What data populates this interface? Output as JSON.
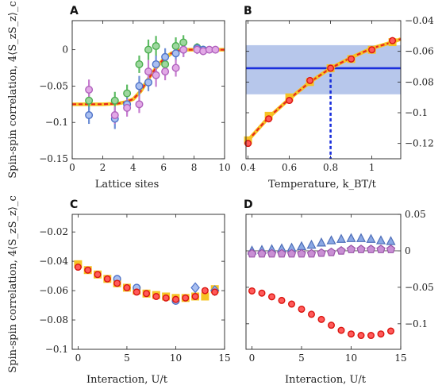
{
  "chart_data": [
    {
      "panel": "A",
      "type": "scatter",
      "xlabel": "Lattice sites",
      "ylabel": "Spin-spin correlation, 4⟨S_zS_z⟩_c",
      "xlim": [
        0,
        10
      ],
      "ylim": [
        -0.15,
        0.04
      ],
      "xticks": [
        0,
        2,
        4,
        6,
        8,
        10
      ],
      "yticks": [
        -0.15,
        -0.1,
        -0.05,
        0
      ],
      "ytick_labels": [
        "−0.15",
        "−0.1",
        "−0.05",
        "0"
      ],
      "xtick_labels": [
        "0",
        "2",
        "4",
        "6",
        "8",
        "10"
      ],
      "colors": {
        "green": "#5dbb63",
        "blue": "#6e8fd6",
        "purple": "#c67ccf",
        "theory_yellow": "#f6c324",
        "theory_red": "#e8251e"
      },
      "theory_x": [
        0,
        1,
        2,
        3,
        3.5,
        4,
        4.5,
        5,
        5.5,
        6,
        6.5,
        7,
        7.5,
        8,
        9,
        10
      ],
      "theory_y": [
        -0.075,
        -0.075,
        -0.075,
        -0.074,
        -0.072,
        -0.068,
        -0.057,
        -0.04,
        -0.025,
        -0.013,
        -0.005,
        -0.001,
        0.0,
        0.0,
        0.0,
        0.0
      ],
      "series": [
        {
          "color": "green",
          "x": [
            1.1,
            2.8,
            3.6,
            4.4,
            5.0,
            5.5,
            6.1,
            6.8,
            7.3,
            8.2,
            8.6
          ],
          "y": [
            -0.07,
            -0.07,
            -0.06,
            -0.02,
            0.0,
            0.005,
            -0.02,
            0.005,
            0.01,
            0.003,
            0.0
          ],
          "err": [
            0.012,
            0.012,
            0.012,
            0.012,
            0.014,
            0.014,
            0.012,
            0.012,
            0.01,
            0.006,
            0.005
          ]
        },
        {
          "color": "blue",
          "x": [
            1.1,
            2.8,
            3.6,
            4.4,
            5.0,
            5.5,
            6.1,
            6.8,
            7.3,
            8.2,
            8.6
          ],
          "y": [
            -0.09,
            -0.095,
            -0.075,
            -0.05,
            -0.045,
            -0.02,
            -0.01,
            -0.005,
            0.0,
            0.002,
            0.0
          ],
          "err": [
            0.012,
            0.014,
            0.012,
            0.014,
            0.012,
            0.012,
            0.012,
            0.01,
            0.01,
            0.006,
            0.005
          ]
        },
        {
          "color": "purple",
          "x": [
            1.1,
            2.8,
            3.6,
            4.4,
            5.0,
            5.5,
            6.1,
            6.8,
            7.3,
            8.2,
            8.6,
            9.0,
            9.4
          ],
          "y": [
            -0.055,
            -0.09,
            -0.08,
            -0.075,
            -0.03,
            -0.035,
            -0.03,
            -0.025,
            0.0,
            0.0,
            -0.002,
            0.0,
            0.0
          ],
          "err": [
            0.014,
            0.012,
            0.012,
            0.012,
            0.016,
            0.016,
            0.012,
            0.012,
            0.01,
            0.006,
            0.005,
            0.004,
            0.004
          ]
        }
      ]
    },
    {
      "panel": "B",
      "type": "line",
      "xlabel": "Temperature, k_BT/t",
      "ylabel": "",
      "xlim": [
        0.39,
        1.14
      ],
      "ylim": [
        -0.13,
        -0.04
      ],
      "xticks": [
        0.4,
        0.6,
        0.8,
        1.0
      ],
      "xtick_labels": [
        "0.4",
        "0.6",
        "0.8",
        "1"
      ],
      "yticks": [
        -0.12,
        -0.1,
        -0.08,
        -0.06,
        -0.04
      ],
      "ytick_labels": [
        "−0.12",
        "−0.1",
        "−0.08",
        "−0.06",
        "−0.04"
      ],
      "band": {
        "y": [
          -0.088,
          -0.056
        ],
        "color": "#b3c4ea"
      },
      "hline": {
        "y": -0.071,
        "color": "#1a2fdc"
      },
      "vline": {
        "x": 0.8,
        "color": "#1a2fdc"
      },
      "theory_x": [
        0.4,
        0.5,
        0.6,
        0.7,
        0.8,
        0.9,
        1.0,
        1.1,
        1.14
      ],
      "theory_y": [
        -0.118,
        -0.103,
        -0.091,
        -0.08,
        -0.071,
        -0.064,
        -0.058,
        -0.054,
        -0.052
      ],
      "yellow_x": [
        0.4,
        0.5,
        0.6,
        0.7,
        0.8,
        0.9,
        1.0,
        1.1
      ],
      "yellow_y": [
        -0.118,
        -0.102,
        -0.09,
        -0.08,
        -0.071,
        -0.065,
        -0.059,
        -0.054
      ],
      "red_x": [
        0.4,
        0.5,
        0.6,
        0.7,
        0.8,
        0.9,
        1.0,
        1.1
      ],
      "red_y": [
        -0.12,
        -0.104,
        -0.092,
        -0.079,
        -0.071,
        -0.065,
        -0.059,
        -0.053
      ]
    },
    {
      "panel": "C",
      "type": "scatter",
      "xlabel": "Interaction, U/t",
      "ylabel": "Spin-spin correlation, 4⟨S_zS_z⟩_c",
      "xlim": [
        -0.6,
        15
      ],
      "ylim": [
        -0.1,
        -0.008
      ],
      "xticks": [
        0,
        5,
        10,
        15
      ],
      "xtick_labels": [
        "0",
        "5",
        "10",
        "15"
      ],
      "yticks": [
        -0.1,
        -0.08,
        -0.06,
        -0.04,
        -0.02
      ],
      "ytick_labels": [
        "−0.1",
        "−0.08",
        "−0.06",
        "−0.04",
        "−0.02"
      ],
      "yellow_x": [
        0,
        1,
        2,
        3,
        4,
        5,
        6,
        7,
        8,
        9,
        10,
        11,
        12,
        13,
        14
      ],
      "yellow_y": [
        -0.042,
        -0.046,
        -0.049,
        -0.052,
        -0.055,
        -0.058,
        -0.06,
        -0.062,
        -0.063,
        -0.064,
        -0.065,
        -0.065,
        -0.064,
        -0.064,
        -0.059
      ],
      "red_x": [
        0,
        1,
        2,
        3,
        4,
        5,
        6,
        7,
        8,
        9,
        10,
        11,
        12,
        13,
        14
      ],
      "red_y": [
        -0.044,
        -0.046,
        -0.049,
        -0.052,
        -0.055,
        -0.058,
        -0.061,
        -0.062,
        -0.064,
        -0.065,
        -0.066,
        -0.065,
        -0.064,
        -0.06,
        -0.061
      ],
      "blue_circle_x": [
        4,
        6,
        10
      ],
      "blue_circle_y": [
        -0.052,
        -0.058,
        -0.067
      ],
      "blue_diamond_x": [
        12,
        14
      ],
      "blue_diamond_y": [
        -0.058,
        -0.06
      ]
    },
    {
      "panel": "D",
      "type": "scatter",
      "xlabel": "Interaction, U/t",
      "ylabel": "",
      "xlim": [
        -0.6,
        15
      ],
      "ylim": [
        -0.135,
        0.05
      ],
      "xticks": [
        0,
        5,
        10,
        15
      ],
      "xtick_labels": [
        "0",
        "5",
        "10",
        "15"
      ],
      "yticks": [
        -0.1,
        -0.05,
        0,
        0.05
      ],
      "ytick_labels": [
        "−0.1",
        "−0.05",
        "0",
        "0.05"
      ],
      "triangle_x": [
        0,
        1,
        2,
        3,
        4,
        5,
        6,
        7,
        8,
        9,
        10,
        11,
        12,
        13,
        14
      ],
      "triangle_y": [
        0.0,
        0.001,
        0.002,
        0.003,
        0.004,
        0.006,
        0.008,
        0.011,
        0.014,
        0.016,
        0.017,
        0.017,
        0.016,
        0.014,
        0.013
      ],
      "pentagon_x": [
        0,
        1,
        2,
        3,
        4,
        5,
        6,
        7,
        8,
        9,
        10,
        11,
        12,
        13,
        14
      ],
      "pentagon_y": [
        -0.004,
        -0.004,
        -0.004,
        -0.004,
        -0.004,
        -0.004,
        -0.004,
        -0.003,
        -0.002,
        0.0,
        0.002,
        0.002,
        0.002,
        0.002,
        0.002
      ],
      "red_x": [
        0,
        1,
        2,
        3,
        4,
        5,
        6,
        7,
        8,
        9,
        10,
        11,
        12,
        13,
        14
      ],
      "red_y": [
        -0.055,
        -0.058,
        -0.063,
        -0.068,
        -0.073,
        -0.08,
        -0.087,
        -0.094,
        -0.102,
        -0.109,
        -0.114,
        -0.116,
        -0.116,
        -0.114,
        -0.11
      ]
    }
  ],
  "panel_labels": [
    "A",
    "B",
    "C",
    "D"
  ]
}
